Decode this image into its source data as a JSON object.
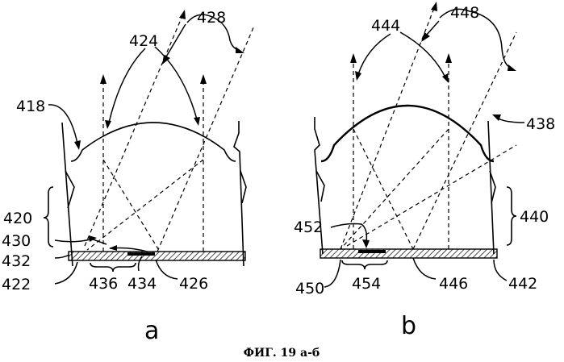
{
  "figure": {
    "caption": "ФИГ. 19 а-б",
    "panel_a": {
      "sublabel": "a",
      "refs": {
        "r418": "418",
        "r420": "420",
        "r422": "422",
        "r424": "424",
        "r426": "426",
        "r428": "428",
        "r430": "430",
        "r432": "432",
        "r434": "434",
        "r436": "436"
      }
    },
    "panel_b": {
      "sublabel": "b",
      "refs": {
        "r438": "438",
        "r440": "440",
        "r442": "442",
        "r444": "444",
        "r446": "446",
        "r448": "448",
        "r450": "450",
        "r452": "452",
        "r454": "454"
      }
    }
  }
}
